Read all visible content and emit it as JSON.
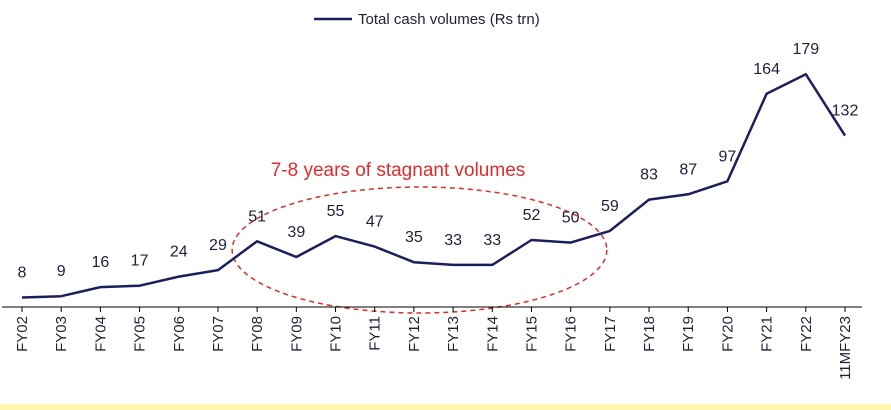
{
  "chart_data": {
    "type": "line",
    "categories": [
      "FY02",
      "FY03",
      "FY04",
      "FY05",
      "FY06",
      "FY07",
      "FY08",
      "FY09",
      "FY10",
      "FY11",
      "FY12",
      "FY13",
      "FY14",
      "FY15",
      "FY16",
      "FY17",
      "FY18",
      "FY19",
      "FY20",
      "FY21",
      "FY22",
      "11MFY23"
    ],
    "series": [
      {
        "name": "Total cash volumes (Rs trn)",
        "values": [
          8,
          9,
          16,
          17,
          24,
          29,
          51,
          39,
          55,
          47,
          35,
          33,
          33,
          52,
          50,
          59,
          83,
          87,
          97,
          164,
          179,
          132
        ],
        "color": "#1b1f5e"
      }
    ],
    "ylim": [
      0,
      190
    ],
    "grid": false,
    "legend_position": "top-center",
    "annotation": {
      "text": "7-8 years of stagnant volumes",
      "color": "#e02b2b",
      "shape": "dashed-ellipse",
      "spans": [
        "FY08",
        "FY17"
      ]
    },
    "xlabel": "",
    "ylabel": ""
  }
}
